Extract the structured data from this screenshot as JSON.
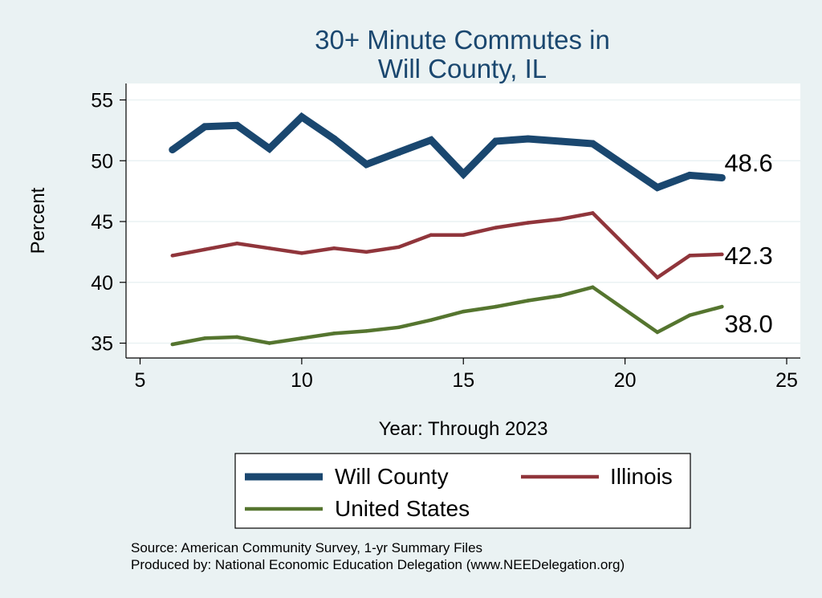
{
  "chart_data": {
    "type": "line",
    "title_line1": "30+ Minute Commutes in",
    "title_line2": "Will County, IL",
    "xlabel": "Year: Through 2023",
    "ylabel": "Percent",
    "xlim": [
      5,
      25
    ],
    "ylim": [
      35,
      55
    ],
    "xticks": [
      5,
      10,
      15,
      20,
      25
    ],
    "yticks": [
      35,
      40,
      45,
      50,
      55
    ],
    "x": [
      6,
      7,
      8,
      9,
      10,
      11,
      12,
      13,
      14,
      15,
      16,
      17,
      18,
      19,
      21,
      22,
      23
    ],
    "series": [
      {
        "name": "Will County",
        "color": "#1a476f",
        "values": [
          50.9,
          52.8,
          52.9,
          51.0,
          53.6,
          51.8,
          49.7,
          50.7,
          51.7,
          48.9,
          51.6,
          51.8,
          51.6,
          51.4,
          47.8,
          48.8,
          48.6
        ],
        "end_label": "48.6"
      },
      {
        "name": "Illinois",
        "color": "#90353b",
        "values": [
          42.2,
          42.7,
          43.2,
          42.8,
          42.4,
          42.8,
          42.5,
          42.9,
          43.9,
          43.9,
          44.5,
          44.9,
          45.2,
          45.7,
          40.4,
          42.2,
          42.3
        ],
        "end_label": "42.3"
      },
      {
        "name": "United States",
        "color": "#55752f",
        "values": [
          34.9,
          35.4,
          35.5,
          35.0,
          35.4,
          35.8,
          36.0,
          36.3,
          36.9,
          37.6,
          38.0,
          38.5,
          38.9,
          39.6,
          35.9,
          37.3,
          38.0
        ],
        "end_label": "38.0"
      }
    ],
    "legend": {
      "placement": "bottom",
      "items": [
        "Will County",
        "Illinois",
        "United States"
      ]
    },
    "grid": true
  },
  "footer": {
    "source": "Source: American Community Survey, 1-yr Summary Files",
    "produced": "Produced by: National Economic Education Delegation (www.NEEDelegation.org)"
  },
  "colors": {
    "background": "#eaf2f3",
    "plot_background": "#ffffff",
    "title": "#1a476f",
    "grid": "#eaf2f3"
  }
}
